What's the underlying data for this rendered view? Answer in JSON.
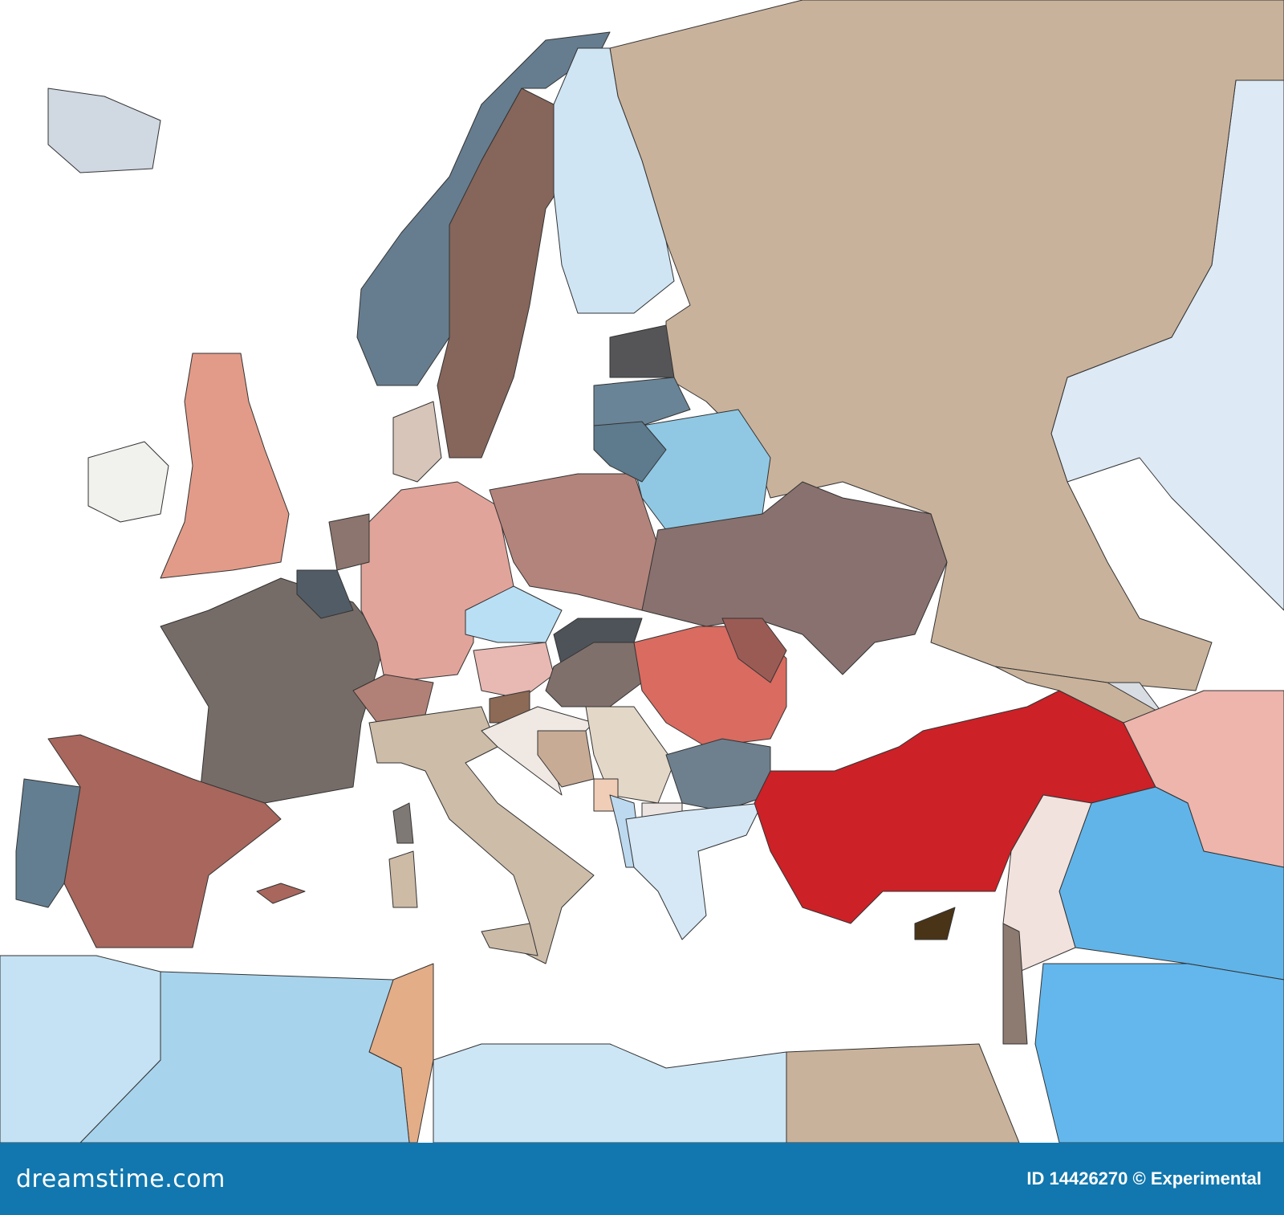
{
  "footer": {
    "brand": "dreamstime.com",
    "credit": "ID 14426270 © Experimental",
    "background_color": "#1177ae"
  },
  "map": {
    "sea_color": "#ffffff",
    "border_color": "#333333",
    "region_colors": {
      "russia": "#c9b29b",
      "kazakhstan": "#dde9f4",
      "iceland": "#d0d8e2",
      "norway": "#667d8f",
      "sweden": "#86655b",
      "finland": "#cfe5f4",
      "uk": "#e29b88",
      "ireland": "#f1f1ee",
      "france": "#766c67",
      "spain": "#a8665d",
      "portugal": "#637e90",
      "germany": "#e1a49a",
      "poland": "#b3847c",
      "belarus": "#90c8e4",
      "ukraine": "#88716e",
      "estonia": "#555558",
      "latvia": "#6a8497",
      "lithuania": "#5e7a8d",
      "czechia": "#b9dff5",
      "slovakia": "#4d5359",
      "austria": "#e8b8b3",
      "hungary": "#80706c",
      "romania": "#d96b60",
      "moldova": "#9b5b55",
      "switzerland": "#b18076",
      "italy": "#ccbca8",
      "netherlands": "#8c756e",
      "belgium": "#525c66",
      "denmark": "#d7c5ba",
      "slovenia": "#8c6a55",
      "croatia": "#f0e8e3",
      "bosnia": "#c7ab95",
      "serbia": "#e3d7c8",
      "montenegro": "#f0cdb6",
      "albania": "#bcd9ef",
      "macedonia": "#ece4e0",
      "bulgaria": "#6e7f8e",
      "greece": "#d6e8f6",
      "turkey": "#cc2127",
      "georgia": "#d8dde4",
      "caucasus": "#c9b29b",
      "iran": "#edb5ac",
      "iraq": "#61b4e8",
      "syria": "#f2e2dd",
      "arabia": "#63b7ec",
      "levant": "#8d7a70",
      "egypt": "#c9b29b",
      "libya": "#cde6f6",
      "tunisia": "#e3ad88",
      "algeria": "#a8d3ec",
      "morocco": "#c4e2f3",
      "corsica": "#7f7975",
      "sardinia": "#cdbba6",
      "sicily": "#cbbaa6",
      "cyprus": "#4a3417",
      "balearics": "#a8665d"
    }
  }
}
